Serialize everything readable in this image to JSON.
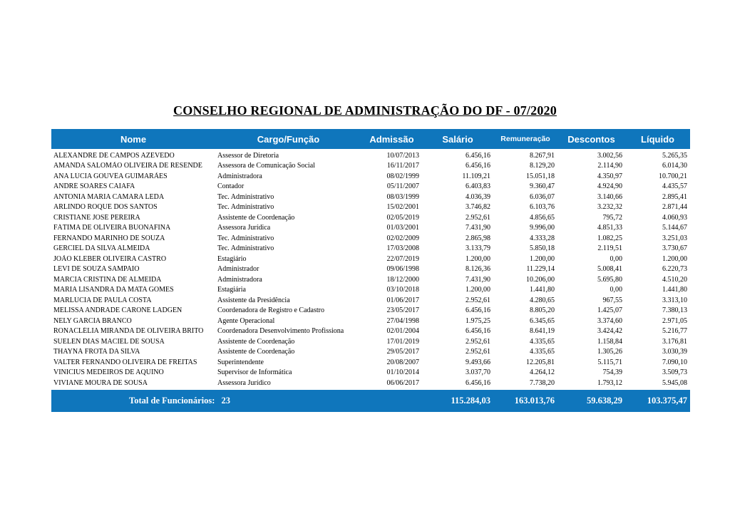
{
  "title": "CONSELHO REGIONAL DE ADMINISTRAÇÃO DO DF - 07/2020",
  "colors": {
    "header_bg": "#0f76bc",
    "header_text": "#ffffff",
    "body_text": "#000000",
    "page_bg": "#ffffff"
  },
  "table": {
    "columns": [
      "Nome",
      "Cargo/Função",
      "Admissão",
      "Salário",
      "Remuneração",
      "Descontos",
      "Líquido"
    ],
    "column_keys": [
      "nome",
      "cargo-funcao",
      "admissao",
      "salario",
      "remuneracao",
      "descontos",
      "liquido"
    ],
    "rows": [
      {
        "name": "ALEXANDRE DE CAMPOS AZEVEDO",
        "cargo": "Assessor de Diretoria",
        "admissao": "10/07/2013",
        "salario": "6.456,16",
        "remuneracao": "8.267,91",
        "descontos": "3.002,56",
        "liquido": "5.265,35"
      },
      {
        "name": "AMANDA SALOMÃO OLIVEIRA DE RESENDE",
        "cargo": "Assessora de Comunicação Social",
        "admissao": "16/11/2017",
        "salario": "6.456,16",
        "remuneracao": "8.129,20",
        "descontos": "2.114,90",
        "liquido": "6.014,30"
      },
      {
        "name": "ANA LÚCIA GOUVÊA GUIMARÃES",
        "cargo": "Administradora",
        "admissao": "08/02/1999",
        "salario": "11.109,21",
        "remuneracao": "15.051,18",
        "descontos": "4.350,97",
        "liquido": "10.700,21"
      },
      {
        "name": "ANDRÉ SOARES CAIAFA",
        "cargo": "Contador",
        "admissao": "05/11/2007",
        "salario": "6.403,83",
        "remuneracao": "9.360,47",
        "descontos": "4.924,90",
        "liquido": "4.435,57"
      },
      {
        "name": "ANTONIA MARIA CAMARA LEDA",
        "cargo": "Tec. Administrativo",
        "admissao": "08/03/1999",
        "salario": "4.036,39",
        "remuneracao": "6.036,07",
        "descontos": "3.140,66",
        "liquido": "2.895,41"
      },
      {
        "name": "ARLINDO ROQUE DOS SANTOS",
        "cargo": "Tec. Administrativo",
        "admissao": "15/02/2001",
        "salario": "3.746,82",
        "remuneracao": "6.103,76",
        "descontos": "3.232,32",
        "liquido": "2.871,44"
      },
      {
        "name": "CRISTIANE JOSÉ PEREIRA",
        "cargo": "Assistente de Coordenação",
        "admissao": "02/05/2019",
        "salario": "2.952,61",
        "remuneracao": "4.856,65",
        "descontos": "795,72",
        "liquido": "4.060,93"
      },
      {
        "name": "FÁTIMA DE OLIVEIRA BUONAFINA",
        "cargo": "Assessora Jurídica",
        "admissao": "01/03/2001",
        "salario": "7.431,90",
        "remuneracao": "9.996,00",
        "descontos": "4.851,33",
        "liquido": "5.144,67"
      },
      {
        "name": "FERNANDO MARINHO DE SOUZA",
        "cargo": "Tec. Administrativo",
        "admissao": "02/02/2009",
        "salario": "2.865,98",
        "remuneracao": "4.333,28",
        "descontos": "1.082,25",
        "liquido": "3.251,03"
      },
      {
        "name": "GERCIEL DA SILVA ALMEIDA",
        "cargo": "Tec. Administrativo",
        "admissao": "17/03/2008",
        "salario": "3.133,79",
        "remuneracao": "5.850,18",
        "descontos": "2.119,51",
        "liquido": "3.730,67"
      },
      {
        "name": "JOÃO KLEBER OLIVEIRA CASTRO",
        "cargo": "Estagiário",
        "admissao": "22/07/2019",
        "salario": "1.200,00",
        "remuneracao": "1.200,00",
        "descontos": "0,00",
        "liquido": "1.200,00"
      },
      {
        "name": "LEVI DE SOUZA SAMPAIO",
        "cargo": "Administrador",
        "admissao": "09/06/1998",
        "salario": "8.126,36",
        "remuneracao": "11.229,14",
        "descontos": "5.008,41",
        "liquido": "6.220,73"
      },
      {
        "name": "MÁRCIA CRISTINA DE ALMEIDA",
        "cargo": "Administradora",
        "admissao": "18/12/2000",
        "salario": "7.431,90",
        "remuneracao": "10.206,00",
        "descontos": "5.695,80",
        "liquido": "4.510,20"
      },
      {
        "name": "MARIA LISANDRA DA MATA GOMES",
        "cargo": "Estagiária",
        "admissao": "03/10/2018",
        "salario": "1.200,00",
        "remuneracao": "1.441,80",
        "descontos": "0,00",
        "liquido": "1.441,80"
      },
      {
        "name": "MARLÚCIA DE PAULA COSTA",
        "cargo": "Assistente da Presidência",
        "admissao": "01/06/2017",
        "salario": "2.952,61",
        "remuneracao": "4.280,65",
        "descontos": "967,55",
        "liquido": "3.313,10"
      },
      {
        "name": "MELISSA ANDRADE CARONE LADGEN",
        "cargo": "Coordenadora de Registro e Cadastro",
        "admissao": "23/05/2017",
        "salario": "6.456,16",
        "remuneracao": "8.805,20",
        "descontos": "1.425,07",
        "liquido": "7.380,13"
      },
      {
        "name": "NELY GARCIA BRANCO",
        "cargo": "Agente Operacional",
        "admissao": "27/04/1998",
        "salario": "1.975,25",
        "remuneracao": "6.345,65",
        "descontos": "3.374,60",
        "liquido": "2.971,05"
      },
      {
        "name": "RONACLÉLIA MIRANDA DE OLIVEIRA BRITO",
        "cargo": "Coordenadora Desenvolvimento Profissiona",
        "admissao": "02/01/2004",
        "salario": "6.456,16",
        "remuneracao": "8.641,19",
        "descontos": "3.424,42",
        "liquido": "5.216,77"
      },
      {
        "name": "SUELEN DIAS MACIEL DE SOUSA",
        "cargo": "Assistente de Coordenação",
        "admissao": "17/01/2019",
        "salario": "2.952,61",
        "remuneracao": "4.335,65",
        "descontos": "1.158,84",
        "liquido": "3.176,81"
      },
      {
        "name": "THAYNÁ FROTA DA SILVA",
        "cargo": "Assistente de Coordenação",
        "admissao": "29/05/2017",
        "salario": "2.952,61",
        "remuneracao": "4.335,65",
        "descontos": "1.305,26",
        "liquido": "3.030,39"
      },
      {
        "name": "VALTER FERNANDO OLIVEIRA DE FREITAS",
        "cargo": "Superintendente",
        "admissao": "20/08/2007",
        "salario": "9.493,66",
        "remuneracao": "12.205,81",
        "descontos": "5.115,71",
        "liquido": "7.090,10"
      },
      {
        "name": "VINICIUS MEDEIROS DE AQUINO",
        "cargo": "Supervisor de Informática",
        "admissao": "01/10/2014",
        "salario": "3.037,70",
        "remuneracao": "4.264,12",
        "descontos": "754,39",
        "liquido": "3.509,73"
      },
      {
        "name": "VIVIANE MOURA DE SOUSA",
        "cargo": "Assessora Jurídico",
        "admissao": "06/06/2017",
        "salario": "6.456,16",
        "remuneracao": "7.738,20",
        "descontos": "1.793,12",
        "liquido": "5.945,08"
      }
    ],
    "total": {
      "label": "Total de Funcionários:",
      "count": "23",
      "salario": "115.284,03",
      "remuneracao": "163.013,76",
      "descontos": "59.638,29",
      "liquido": "103.375,47"
    }
  }
}
